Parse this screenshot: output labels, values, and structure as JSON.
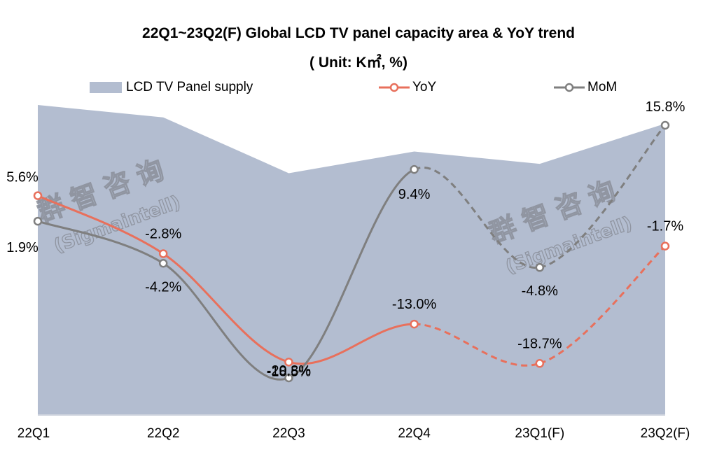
{
  "chart_data": {
    "type": "line",
    "title": "22Q1~23Q2(F) Global LCD TV panel capacity area & YoY trend",
    "subtitle": "( Unit: K㎡,  %)",
    "xlabel": "",
    "ylabel": "",
    "categories": [
      "22Q1",
      "22Q2",
      "22Q3",
      "22Q4",
      "23Q1(F)",
      "23Q2(F)"
    ],
    "legend_position": "top",
    "grid": false,
    "forecast_from_index": 3,
    "series": [
      {
        "name": "LCD TV Panel supply",
        "type": "area",
        "color": "#b3bdd0",
        "relative_values": [
          1.0,
          0.96,
          0.78,
          0.85,
          0.81,
          0.94
        ],
        "note": "no values labeled; relative heights only"
      },
      {
        "name": "YoY",
        "type": "line",
        "color": "#e8705c",
        "values": [
          5.6,
          -2.8,
          -18.5,
          -13.0,
          -18.7,
          -1.7
        ],
        "labels": [
          "5.6%",
          "-2.8%",
          "-18.5%",
          "-13.0%",
          "-18.7%",
          "-1.7%"
        ]
      },
      {
        "name": "MoM",
        "type": "line",
        "color": "#7f7f7f",
        "values": [
          1.9,
          -4.2,
          -20.8,
          9.4,
          -4.8,
          15.8
        ],
        "labels": [
          "1.9%",
          "-4.2%",
          "-20.8%",
          "9.4%",
          "-4.8%",
          "15.8%"
        ]
      }
    ]
  },
  "watermark": {
    "cn": "群智咨询",
    "en": "(Sigmaintell)"
  }
}
